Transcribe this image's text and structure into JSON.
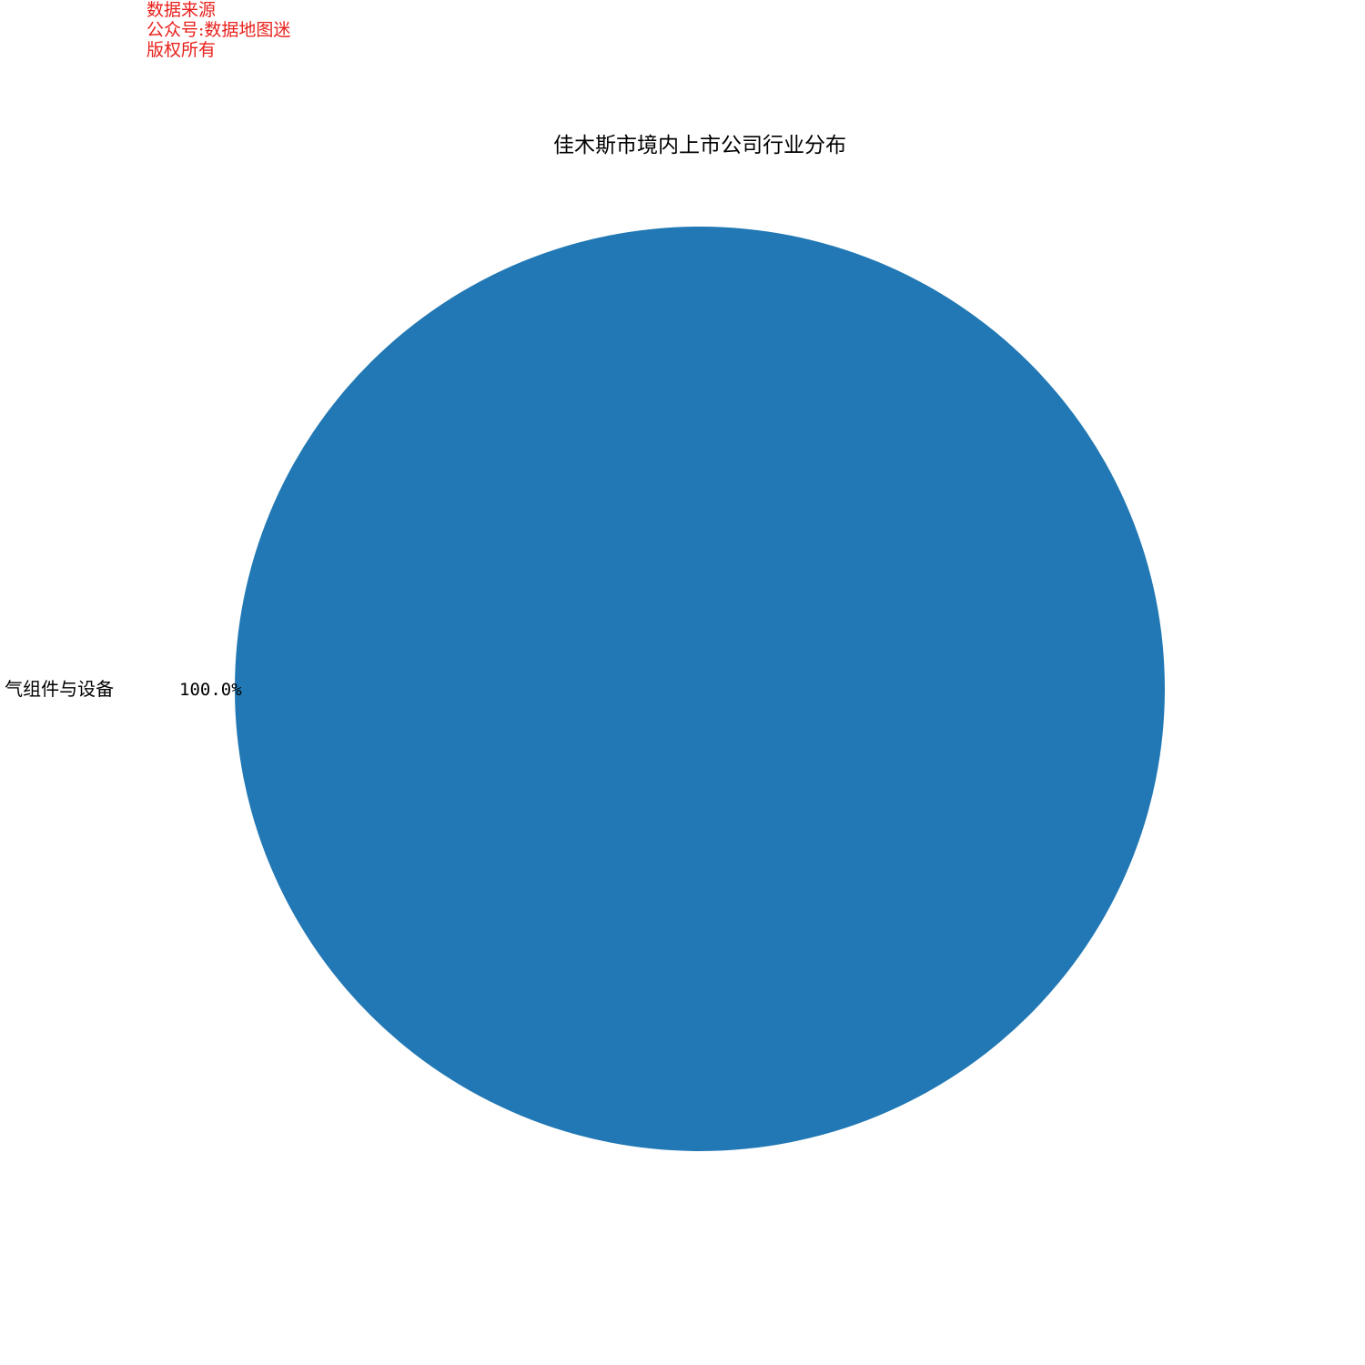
{
  "watermark": {
    "line1": "数据来源",
    "line2": "公众号:数据地图迷",
    "line3": "版权所有",
    "color": "#e8211c"
  },
  "chart_data": {
    "type": "pie",
    "title": "佳木斯市境内上市公司行业分布",
    "slices": [
      {
        "label": "气组件与设备",
        "value": 100.0,
        "percent_label": "100.0%",
        "color": "#2178b4"
      }
    ]
  }
}
